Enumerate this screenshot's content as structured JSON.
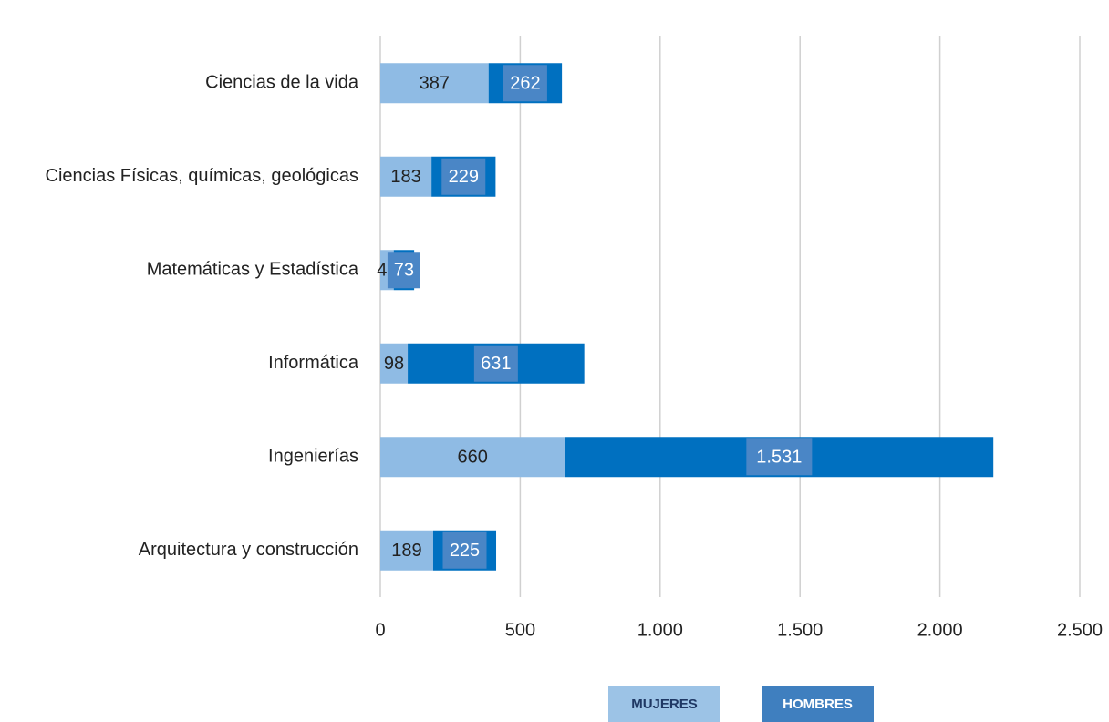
{
  "chart_data": {
    "type": "stacked_barh",
    "categories": [
      "Ciencias de la vida",
      "Ciencias Físicas, químicas, geológicas",
      "Matemáticas y Estadística",
      "Informática",
      "Ingenierías",
      "Arquitectura y construcción"
    ],
    "series": [
      {
        "name": "MUJERES",
        "color": "#8fbbe4",
        "values": [
          387,
          183,
          48,
          98,
          660,
          189
        ]
      },
      {
        "name": "HOMBRES",
        "color": "#0070c0",
        "values": [
          262,
          229,
          73,
          631,
          1531,
          225
        ],
        "value_labels": [
          "262",
          "229",
          "73",
          "631",
          "1.531",
          "225"
        ]
      }
    ],
    "xlim": [
      0,
      2500
    ],
    "xticks": [
      0,
      500,
      {
        "value": 1000,
        "label": "1.000"
      },
      {
        "value": 1500,
        "label": "1.500"
      },
      {
        "value": 2000,
        "label": "2.000"
      },
      {
        "value": 2500,
        "label": "2.500"
      }
    ],
    "grid": true,
    "legend": "bottom"
  }
}
